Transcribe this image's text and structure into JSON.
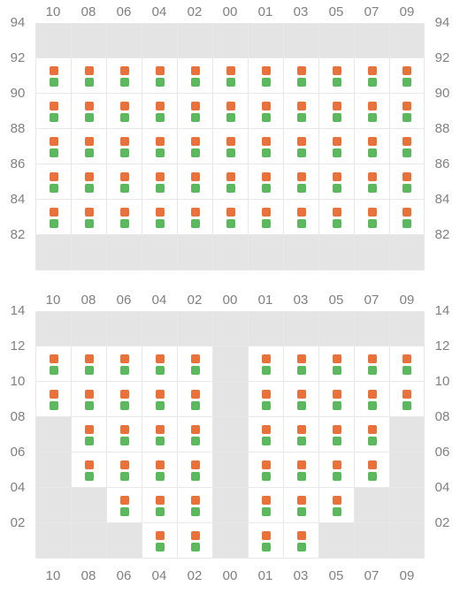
{
  "colors": {
    "orange": "#e9713c",
    "green": "#5cb85c",
    "empty_bg": "#e4e4e4",
    "rack_bg": "#ffffff",
    "grid_border": "#e8e8e8",
    "label": "#808080"
  },
  "columns": [
    "10",
    "08",
    "06",
    "04",
    "02",
    "00",
    "01",
    "03",
    "05",
    "07",
    "09"
  ],
  "top": {
    "row_labels": [
      "94",
      "92",
      "90",
      "88",
      "86",
      "84",
      "82"
    ],
    "rows": [
      [
        0,
        0,
        0,
        0,
        0,
        0,
        0,
        0,
        0,
        0,
        0
      ],
      [
        1,
        1,
        1,
        1,
        1,
        1,
        1,
        1,
        1,
        1,
        1
      ],
      [
        1,
        1,
        1,
        1,
        1,
        1,
        1,
        1,
        1,
        1,
        1
      ],
      [
        1,
        1,
        1,
        1,
        1,
        1,
        1,
        1,
        1,
        1,
        1
      ],
      [
        1,
        1,
        1,
        1,
        1,
        1,
        1,
        1,
        1,
        1,
        1
      ],
      [
        1,
        1,
        1,
        1,
        1,
        1,
        1,
        1,
        1,
        1,
        1
      ],
      [
        0,
        0,
        0,
        0,
        0,
        0,
        0,
        0,
        0,
        0,
        0
      ]
    ]
  },
  "bottom": {
    "row_labels": [
      "14",
      "12",
      "10",
      "08",
      "06",
      "04",
      "02"
    ],
    "rows": [
      [
        0,
        0,
        0,
        0,
        0,
        0,
        0,
        0,
        0,
        0,
        0
      ],
      [
        1,
        1,
        1,
        1,
        1,
        0,
        1,
        1,
        1,
        1,
        1
      ],
      [
        1,
        1,
        1,
        1,
        1,
        0,
        1,
        1,
        1,
        1,
        1
      ],
      [
        0,
        1,
        1,
        1,
        1,
        0,
        1,
        1,
        1,
        1,
        0
      ],
      [
        0,
        1,
        1,
        1,
        1,
        0,
        1,
        1,
        1,
        1,
        0
      ],
      [
        0,
        0,
        1,
        1,
        1,
        0,
        1,
        1,
        1,
        0,
        0
      ],
      [
        0,
        0,
        0,
        1,
        1,
        0,
        1,
        1,
        0,
        0,
        0
      ]
    ]
  }
}
